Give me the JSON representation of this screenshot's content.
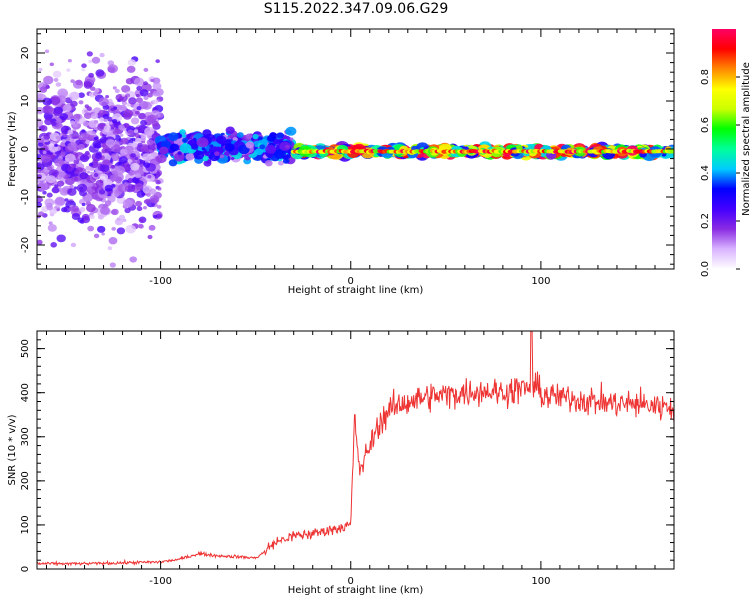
{
  "page": {
    "title": "S115.2022.347.09.06.G29"
  },
  "chart_data": [
    {
      "type": "heatmap",
      "xlabel": "Height of straight line (km)",
      "ylabel": "Frequency (Hz)",
      "xlim": [
        -165,
        170
      ],
      "ylim": [
        -25,
        25
      ],
      "x_ticks": [
        -100,
        0,
        100
      ],
      "y_ticks": [
        -20,
        -10,
        0,
        10,
        20
      ],
      "colorbar": {
        "label": "Normalized spectral amplitude",
        "range": [
          0.0,
          1.0
        ],
        "ticks": [
          0.0,
          0.2,
          0.4,
          0.6,
          0.8
        ],
        "colors": [
          "#ffffff",
          "#d9b3ff",
          "#8a2be2",
          "#4400ff",
          "#0000ff",
          "#00ccff",
          "#00ff99",
          "#00ff00",
          "#ccff00",
          "#ffff00",
          "#ff8800",
          "#ff0000",
          "#ff0066"
        ]
      },
      "features": [
        {
          "x_range": [
            -165,
            -100
          ],
          "freq_center": 0,
          "freq_spread": 25,
          "amplitude": 0.15,
          "description_level": "scattered"
        },
        {
          "x_range": [
            -100,
            -30
          ],
          "freq_center": 0.5,
          "freq_spread": 4,
          "amplitude": 0.35
        },
        {
          "x_range": [
            -30,
            170
          ],
          "freq_center": -0.5,
          "freq_spread": 1,
          "amplitude": 0.9
        }
      ]
    },
    {
      "type": "line",
      "xlabel": "Height of straight line (km)",
      "ylabel": "SNR (10 * v/v)",
      "xlim": [
        -165,
        170
      ],
      "ylim": [
        0,
        540
      ],
      "x_ticks": [
        -100,
        0,
        100
      ],
      "y_ticks": [
        0,
        100,
        200,
        300,
        400,
        500
      ],
      "color": "#ee3333",
      "series": [
        {
          "x": [
            -165,
            -140,
            -120,
            -100,
            -90,
            -80,
            -70,
            -60,
            -50,
            -45,
            -40,
            -30,
            -20,
            -10,
            0,
            2,
            5,
            10,
            15,
            20,
            30,
            40,
            50,
            60,
            70,
            80,
            90,
            95,
            100,
            110,
            120,
            130,
            140,
            150,
            160,
            170
          ],
          "values": [
            12,
            12,
            14,
            16,
            22,
            35,
            30,
            28,
            25,
            40,
            60,
            75,
            80,
            90,
            100,
            330,
            220,
            280,
            330,
            360,
            380,
            390,
            395,
            400,
            405,
            400,
            410,
            540,
            395,
            390,
            385,
            380,
            375,
            375,
            370,
            370
          ]
        }
      ]
    }
  ]
}
